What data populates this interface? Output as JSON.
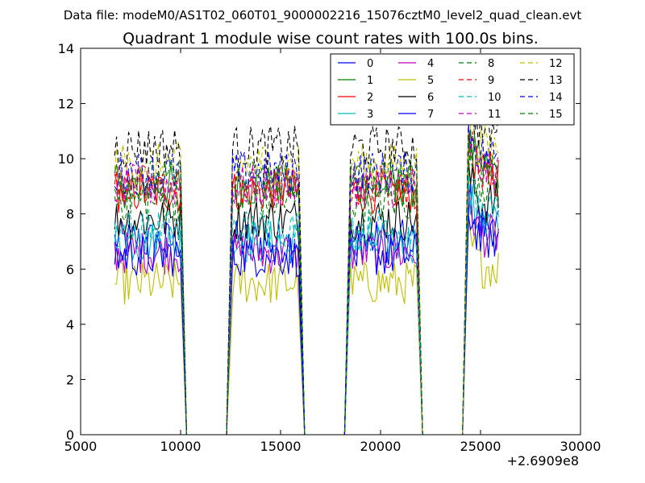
{
  "chart_data": {
    "type": "line",
    "suptitle": "Data file: modeM0/AS1T02_060T01_9000002216_15076cztM0_level2_quad_clean.evt",
    "title": "Quadrant 1 module wise count rates with 100.0s bins.",
    "xlabel": "",
    "ylabel": "",
    "x_offset_label": "+2.6909e8",
    "xlim": [
      5000,
      30000
    ],
    "ylim": [
      0,
      14
    ],
    "x_ticks": [
      5000,
      10000,
      15000,
      20000,
      25000,
      30000
    ],
    "y_ticks": [
      0,
      2,
      4,
      6,
      8,
      10,
      12,
      14
    ],
    "grid": false,
    "legend_position": "top-right",
    "legend_columns": 4,
    "segments": [
      [
        6700,
        10000
      ],
      [
        12600,
        15900
      ],
      [
        18500,
        21800
      ],
      [
        24400,
        25900
      ]
    ],
    "gap_edges": [
      [
        10000,
        10300
      ],
      [
        12300,
        12600
      ],
      [
        15900,
        16200
      ],
      [
        18200,
        18500
      ],
      [
        21800,
        22100
      ],
      [
        24100,
        24400
      ]
    ],
    "series": [
      {
        "name": "0",
        "mean": 7.0,
        "color": "#0000ff",
        "dash": "solid"
      },
      {
        "name": "1",
        "mean": 9.0,
        "color": "#008000",
        "dash": "solid"
      },
      {
        "name": "2",
        "mean": 8.8,
        "color": "#ff0000",
        "dash": "solid"
      },
      {
        "name": "3",
        "mean": 7.0,
        "color": "#00bfbf",
        "dash": "solid"
      },
      {
        "name": "4",
        "mean": 6.6,
        "color": "#bf00bf",
        "dash": "solid"
      },
      {
        "name": "5",
        "mean": 5.5,
        "color": "#bfbf00",
        "dash": "solid"
      },
      {
        "name": "6",
        "mean": 7.8,
        "color": "#000000",
        "dash": "solid"
      },
      {
        "name": "7",
        "mean": 6.5,
        "color": "#0000ff",
        "dash": "solid"
      },
      {
        "name": "8",
        "mean": 8.5,
        "color": "#008000",
        "dash": "dashed"
      },
      {
        "name": "9",
        "mean": 9.0,
        "color": "#ff0000",
        "dash": "dashed"
      },
      {
        "name": "10",
        "mean": 7.4,
        "color": "#00bfbf",
        "dash": "dashed"
      },
      {
        "name": "11",
        "mean": 9.0,
        "color": "#bf00bf",
        "dash": "dashed"
      },
      {
        "name": "12",
        "mean": 9.8,
        "color": "#bfbf00",
        "dash": "dashed"
      },
      {
        "name": "13",
        "mean": 10.4,
        "color": "#000000",
        "dash": "dashed"
      },
      {
        "name": "14",
        "mean": 9.5,
        "color": "#0000ff",
        "dash": "dashed"
      },
      {
        "name": "15",
        "mean": 9.2,
        "color": "#008000",
        "dash": "dashed"
      }
    ]
  }
}
